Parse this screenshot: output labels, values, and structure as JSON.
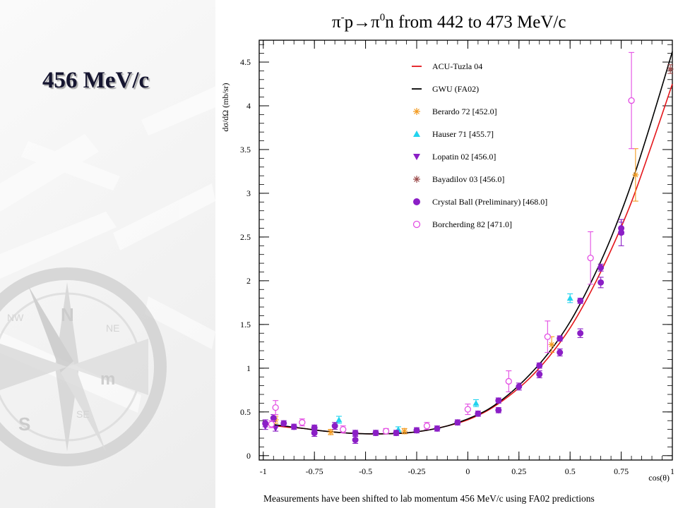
{
  "slide": {
    "heading": "456 MeV/c"
  },
  "colors": {
    "acu": "#e4161b",
    "gwu": "#000000",
    "berardo": "#f39a1e",
    "hauser": "#22d3ee",
    "lopatin": "#8b1fc6",
    "bayadilov": "#9b4a4a",
    "crystal": "#8b1fc6",
    "borcherding": "#e34de3"
  },
  "chart_data": {
    "type": "scatter",
    "title": {
      "pre": "π",
      "sup1": "-",
      "mid": "p→π",
      "sup2": "0",
      "post": "n from 442 to 473 MeV/c"
    },
    "xlabel": "cos(θ)",
    "ylabel": "dσ/dΩ (mb/sr)",
    "footnote": "Measurements have been shifted to lab momentum 456 MeV/c using FA02 predictions",
    "xlim": [
      -1.02,
      1.0
    ],
    "ylim": [
      -0.05,
      4.75
    ],
    "x_ticks": [
      -1,
      -0.75,
      -0.5,
      -0.25,
      0,
      0.25,
      0.5,
      0.75,
      1
    ],
    "x_tick_labels": [
      "-1",
      "-0.75",
      "-0.5",
      "-0.25",
      "0",
      "0.25",
      "0.5",
      "0.75",
      "1"
    ],
    "y_ticks": [
      0,
      0.5,
      1,
      1.5,
      2,
      2.5,
      3,
      3.5,
      4,
      4.5
    ],
    "y_tick_labels": [
      "0",
      "0.5",
      "1",
      "1.5",
      "2",
      "2.5",
      "3",
      "3.5",
      "4",
      "4.5"
    ],
    "legend_position": "top-center",
    "curves": [
      {
        "name": "ACU-Tuzla 04",
        "color": "#e4161b",
        "x": [
          -1,
          -0.9,
          -0.8,
          -0.7,
          -0.6,
          -0.5,
          -0.4,
          -0.3,
          -0.2,
          -0.1,
          0,
          0.1,
          0.2,
          0.3,
          0.4,
          0.5,
          0.6,
          0.7,
          0.8,
          0.9,
          1.0
        ],
        "y": [
          0.36,
          0.33,
          0.31,
          0.28,
          0.26,
          0.25,
          0.25,
          0.26,
          0.29,
          0.34,
          0.41,
          0.52,
          0.68,
          0.88,
          1.14,
          1.46,
          1.87,
          2.35,
          2.9,
          3.56,
          4.25
        ]
      },
      {
        "name": "GWU (FA02)",
        "color": "#000000",
        "x": [
          -1,
          -0.9,
          -0.8,
          -0.7,
          -0.6,
          -0.5,
          -0.4,
          -0.3,
          -0.2,
          -0.1,
          0,
          0.1,
          0.2,
          0.3,
          0.4,
          0.5,
          0.6,
          0.7,
          0.8,
          0.9,
          1.0
        ],
        "y": [
          0.37,
          0.34,
          0.31,
          0.28,
          0.26,
          0.25,
          0.25,
          0.26,
          0.29,
          0.34,
          0.42,
          0.53,
          0.7,
          0.92,
          1.19,
          1.53,
          1.97,
          2.49,
          3.11,
          3.84,
          4.62
        ]
      }
    ],
    "series": [
      {
        "name": "Berardo 72  [452.0]",
        "marker": "star",
        "color": "#f39a1e",
        "points": [
          {
            "x": -0.94,
            "y": 0.41,
            "err": 0.04
          },
          {
            "x": -0.67,
            "y": 0.27,
            "err": 0.03
          },
          {
            "x": -0.31,
            "y": 0.28,
            "err": 0.03
          },
          {
            "x": 0.41,
            "y": 1.27,
            "err": 0.09
          },
          {
            "x": 0.82,
            "y": 3.21,
            "err": 0.3
          }
        ]
      },
      {
        "name": "Hauser 71  [455.7]",
        "marker": "triangle-up",
        "color": "#22d3ee",
        "points": [
          {
            "x": -0.63,
            "y": 0.41,
            "err": 0.04
          },
          {
            "x": -0.34,
            "y": 0.3,
            "err": 0.03
          },
          {
            "x": 0.04,
            "y": 0.6,
            "err": 0.04
          },
          {
            "x": 0.5,
            "y": 1.8,
            "err": 0.05
          }
        ]
      },
      {
        "name": "Lopatin 02  [456.0]",
        "marker": "triangle-down",
        "color": "#8b1fc6",
        "points": [
          {
            "x": -0.99,
            "y": 0.33,
            "err": 0.03
          },
          {
            "x": -0.94,
            "y": 0.31,
            "err": 0.03
          }
        ]
      },
      {
        "name": "Bayadilov 03  [456.0]",
        "marker": "asterisk",
        "color": "#9b4a4a",
        "points": [
          {
            "x": 0.99,
            "y": 4.42,
            "err": 0.05
          }
        ]
      },
      {
        "name": "Crystal Ball (Preliminary)  [468.0]",
        "marker": "circle-filled",
        "color": "#8b1fc6",
        "points": [
          {
            "x": -0.99,
            "y": 0.37,
            "err": 0.04
          },
          {
            "x": -0.95,
            "y": 0.43,
            "err": 0.04
          },
          {
            "x": -0.9,
            "y": 0.37,
            "err": 0.03
          },
          {
            "x": -0.85,
            "y": 0.33,
            "err": 0.03
          },
          {
            "x": -0.75,
            "y": 0.32,
            "err": 0.03
          },
          {
            "x": -0.75,
            "y": 0.26,
            "err": 0.04
          },
          {
            "x": -0.65,
            "y": 0.34,
            "err": 0.04
          },
          {
            "x": -0.55,
            "y": 0.18,
            "err": 0.04
          },
          {
            "x": -0.55,
            "y": 0.26,
            "err": 0.03
          },
          {
            "x": -0.45,
            "y": 0.26,
            "err": 0.03
          },
          {
            "x": -0.35,
            "y": 0.26,
            "err": 0.03
          },
          {
            "x": -0.25,
            "y": 0.29,
            "err": 0.03
          },
          {
            "x": -0.15,
            "y": 0.31,
            "err": 0.03
          },
          {
            "x": -0.05,
            "y": 0.38,
            "err": 0.03
          },
          {
            "x": 0.05,
            "y": 0.48,
            "err": 0.03
          },
          {
            "x": 0.15,
            "y": 0.52,
            "err": 0.03
          },
          {
            "x": 0.15,
            "y": 0.63,
            "err": 0.03
          },
          {
            "x": 0.25,
            "y": 0.79,
            "err": 0.04
          },
          {
            "x": 0.35,
            "y": 0.93,
            "err": 0.04
          },
          {
            "x": 0.35,
            "y": 1.03,
            "err": 0.03
          },
          {
            "x": 0.45,
            "y": 1.18,
            "err": 0.04
          },
          {
            "x": 0.45,
            "y": 1.34,
            "err": 0.03
          },
          {
            "x": 0.55,
            "y": 1.4,
            "err": 0.05
          },
          {
            "x": 0.55,
            "y": 1.77,
            "err": 0.03
          },
          {
            "x": 0.65,
            "y": 1.98,
            "err": 0.06
          },
          {
            "x": 0.65,
            "y": 2.15,
            "err": 0.04
          },
          {
            "x": 0.75,
            "y": 2.55,
            "err": 0.15
          },
          {
            "x": 0.75,
            "y": 2.6,
            "err": 0.07
          }
        ]
      },
      {
        "name": "Borcherding 82  [471.0]",
        "marker": "circle-open",
        "color": "#e34de3",
        "points": [
          {
            "x": -0.96,
            "y": 0.36,
            "err": 0.04
          },
          {
            "x": -0.94,
            "y": 0.55,
            "err": 0.08
          },
          {
            "x": -0.81,
            "y": 0.38,
            "err": 0.04
          },
          {
            "x": -0.61,
            "y": 0.3,
            "err": 0.04
          },
          {
            "x": -0.4,
            "y": 0.28,
            "err": 0.03
          },
          {
            "x": -0.2,
            "y": 0.34,
            "err": 0.04
          },
          {
            "x": 0.0,
            "y": 0.53,
            "err": 0.06
          },
          {
            "x": 0.2,
            "y": 0.85,
            "err": 0.12
          },
          {
            "x": 0.39,
            "y": 1.36,
            "err": 0.18
          },
          {
            "x": 0.6,
            "y": 2.26,
            "err": 0.3
          },
          {
            "x": 0.8,
            "y": 4.06,
            "err": 0.55
          }
        ]
      }
    ]
  }
}
